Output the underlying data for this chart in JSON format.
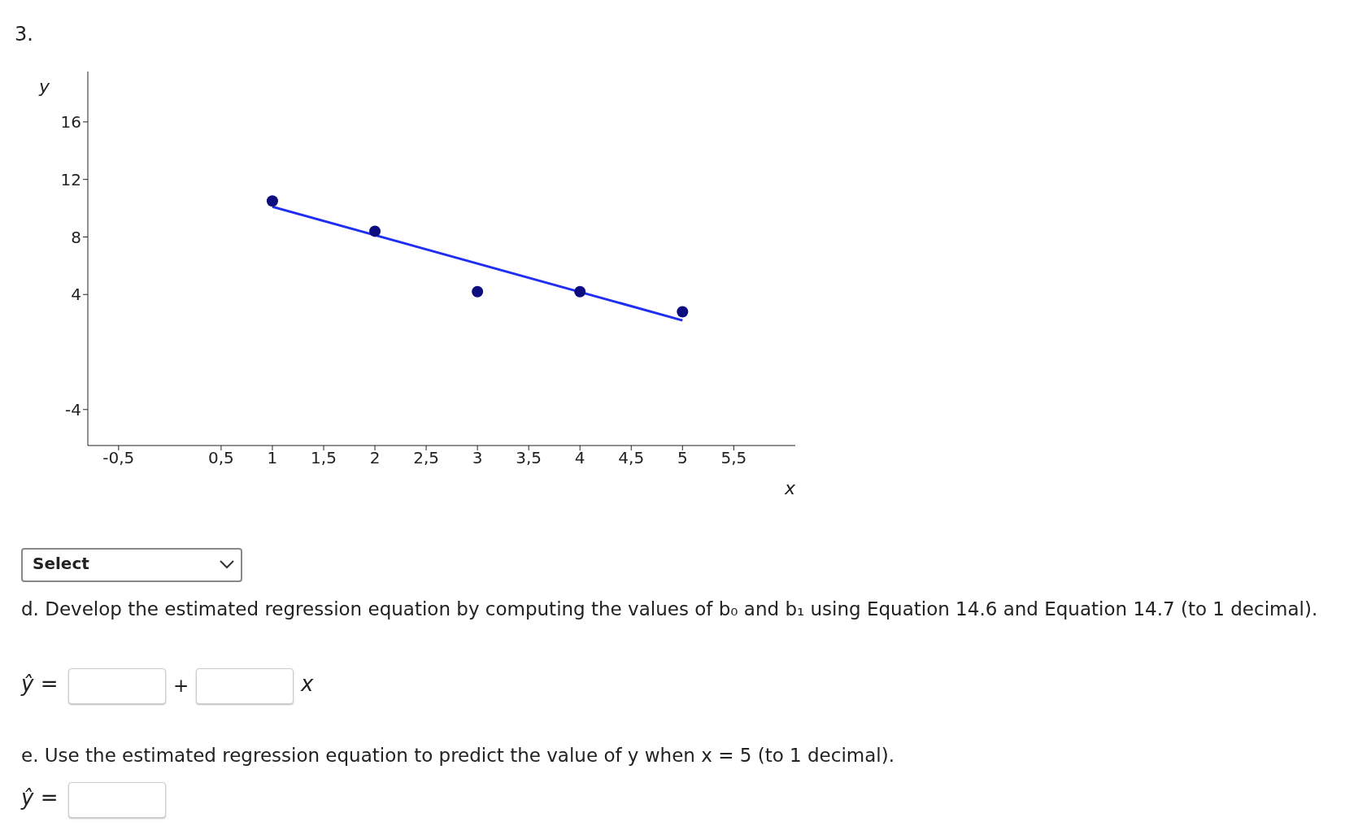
{
  "chart_data": {
    "type": "scatter",
    "xlabel": "x",
    "ylabel": "y",
    "xlim": [
      -0.8,
      6.1
    ],
    "ylim": [
      -6.5,
      19.5
    ],
    "xticks": [
      {
        "value": -0.5,
        "label": "-0,5"
      },
      {
        "value": 0.5,
        "label": "0,5"
      },
      1,
      {
        "value": 1.5,
        "label": "1,5"
      },
      2,
      {
        "value": 2.5,
        "label": "2,5"
      },
      3,
      {
        "value": 3.5,
        "label": "3,5"
      },
      4,
      {
        "value": 4.5,
        "label": "4,5"
      },
      5,
      {
        "value": 5.5,
        "label": "5,5"
      }
    ],
    "yticks": [
      -4,
      4,
      8,
      12,
      16
    ],
    "grid": false,
    "legend": false,
    "series": [
      {
        "marker": "circle",
        "color": "#0d0d80",
        "x": [
          1,
          2,
          3,
          4,
          5
        ],
        "values": [
          10.5,
          8.4,
          4.2,
          4.2,
          2.8
        ]
      },
      {
        "type": "line",
        "marker": "none",
        "color": "#1f2ef0",
        "x": [
          1,
          5
        ],
        "values": [
          10.1,
          2.2
        ]
      }
    ],
    "annotations": [
      "3.",
      "Select",
      "d. Develop the estimated regression equation by computing the values of b₀ and b₁ using Equation 14.6 and Equation 14.7 (to 1 decimal).",
      "ŷ =",
      "+",
      "x",
      "e. Use the estimated regression equation to predict the value of y when x = 5 (to 1 decimal).",
      "ŷ ="
    ]
  }
}
